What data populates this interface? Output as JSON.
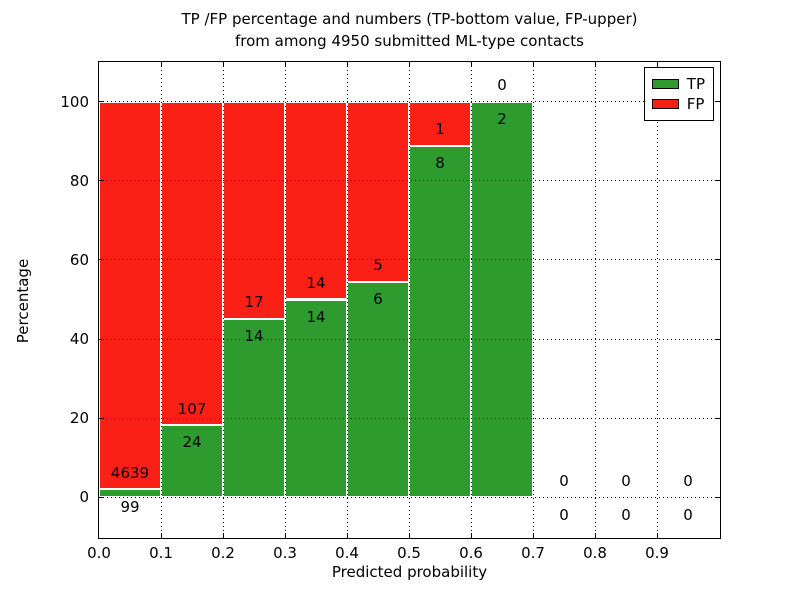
{
  "figure": {
    "title_line1": "TP /FP percentage and numbers (TP-bottom value, FP-upper)",
    "title_line2": "from among 4950 submitted ML-type contacts",
    "total_contacts": 4950
  },
  "chart_data": {
    "type": "bar",
    "stacked": true,
    "title": "TP /FP percentage and numbers (TP-bottom value, FP-upper) from among 4950 submitted ML-type contacts",
    "xlabel": "Predicted probability",
    "ylabel": "Percentage",
    "xlim": [
      0.0,
      1.0
    ],
    "ylim": [
      -10,
      110
    ],
    "grid": "dotted",
    "legend_position": "upper right",
    "bin_width": 0.1,
    "categories": [
      "0.0-0.1",
      "0.1-0.2",
      "0.2-0.3",
      "0.3-0.4",
      "0.4-0.5",
      "0.5-0.6",
      "0.6-0.7",
      "0.7-0.8",
      "0.8-0.9",
      "0.9-1.0"
    ],
    "bin_left_edges": [
      0.0,
      0.1,
      0.2,
      0.3,
      0.4,
      0.5,
      0.6,
      0.7,
      0.8,
      0.9
    ],
    "series": [
      {
        "name": "TP",
        "color": "#2e9b2e",
        "counts": [
          99,
          24,
          14,
          14,
          6,
          8,
          2,
          0,
          0,
          0
        ]
      },
      {
        "name": "FP",
        "color": "#fb2015",
        "counts": [
          4639,
          107,
          17,
          14,
          5,
          1,
          0,
          0,
          0,
          0
        ]
      }
    ],
    "tp_percent": [
      2.09,
      18.32,
      45.16,
      50.0,
      54.55,
      88.89,
      100.0,
      0,
      0,
      0
    ],
    "xticks": {
      "values": [
        0.0,
        0.1,
        0.2,
        0.3,
        0.4,
        0.5,
        0.6,
        0.7,
        0.8,
        0.9
      ],
      "labels": [
        "0.0",
        "0.1",
        "0.2",
        "0.3",
        "0.4",
        "0.5",
        "0.6",
        "0.7",
        "0.8",
        "0.9"
      ]
    },
    "yticks": {
      "values": [
        0,
        20,
        40,
        60,
        80,
        100
      ],
      "labels": [
        "0",
        "20",
        "40",
        "60",
        "80",
        "100"
      ]
    },
    "annotation_note": "FP count printed above TP/FP boundary, TP count below"
  },
  "colors": {
    "tp_green": "#2e9b2e",
    "fp_red": "#fb2015",
    "axis": "#000000",
    "background": "#ffffff",
    "bar_edge": "#ffffff"
  }
}
